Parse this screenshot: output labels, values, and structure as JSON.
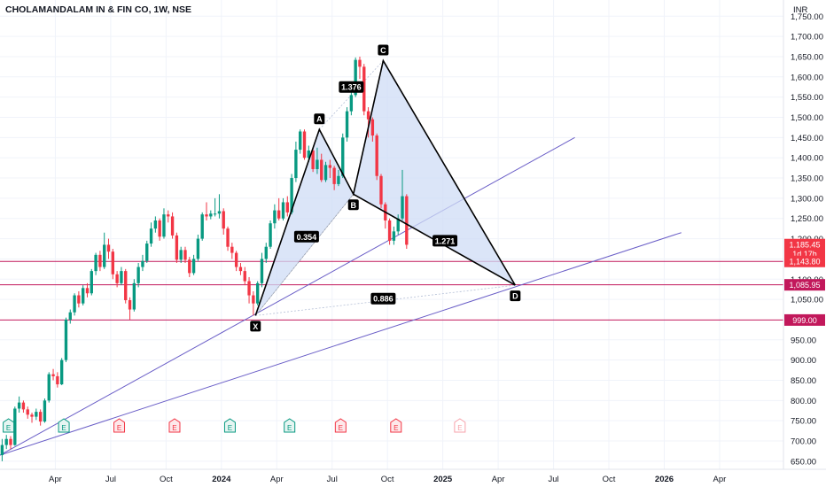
{
  "header": {
    "title": "CHOLAMANDALAM IN & FIN CO, 1W, NSE",
    "currency": "INR"
  },
  "chart_data": {
    "type": "candlestick",
    "price_axis": {
      "ticks": [
        650,
        700,
        750,
        800,
        850,
        900,
        950,
        1050,
        1100,
        1150,
        1200,
        1250,
        1300,
        1350,
        1400,
        1450,
        1500,
        1550,
        1600,
        1650,
        1700,
        1750
      ],
      "range": [
        630,
        1790
      ]
    },
    "time_axis": {
      "labels": [
        {
          "label": "Apr",
          "t": 13
        },
        {
          "label": "Jul",
          "t": 26
        },
        {
          "label": "Oct",
          "t": 39
        },
        {
          "label": "2024",
          "t": 52
        },
        {
          "label": "Apr",
          "t": 65
        },
        {
          "label": "Jul",
          "t": 78
        },
        {
          "label": "Oct",
          "t": 91
        },
        {
          "label": "2025",
          "t": 104
        },
        {
          "label": "Apr",
          "t": 117
        },
        {
          "label": "Jul",
          "t": 130
        },
        {
          "label": "Oct",
          "t": 143
        },
        {
          "label": "2026",
          "t": 156
        },
        {
          "label": "Apr",
          "t": 169
        }
      ],
      "range": [
        0,
        184
      ]
    },
    "price_tags": [
      {
        "value": "1,185.45",
        "price": 1185.45,
        "color": "#f23645"
      },
      {
        "value": "1d 17h",
        "price": 1163,
        "color": "#f23645"
      },
      {
        "value": "1,143.80",
        "price": 1143.8,
        "color": "#f23645"
      },
      {
        "value": "1,085.95",
        "price": 1085.95,
        "color": "#c2185b"
      },
      {
        "value": "999.00",
        "price": 999,
        "color": "#c2185b"
      }
    ],
    "horizontal_lines": [
      1143.8,
      1085.95,
      999
    ],
    "harmonic_pattern": {
      "points": [
        {
          "label": "X",
          "t": 60,
          "price": 1010
        },
        {
          "label": "A",
          "t": 75,
          "price": 1470
        },
        {
          "label": "B",
          "t": 83,
          "price": 1310
        },
        {
          "label": "C",
          "t": 90,
          "price": 1640
        },
        {
          "label": "D",
          "t": 121,
          "price": 1085
        }
      ],
      "ratios": [
        {
          "value": "1.376",
          "t": 82.5,
          "price": 1575
        },
        {
          "value": "0.354",
          "t": 72,
          "price": 1205
        },
        {
          "value": "1.271",
          "t": 104.5,
          "price": 1195
        },
        {
          "value": "0.886",
          "t": 90,
          "price": 1052
        }
      ]
    },
    "trendlines": [
      {
        "t1": 0,
        "p1": 665,
        "t2": 135,
        "p2": 1450
      },
      {
        "t1": 0,
        "p1": 665,
        "t2": 160,
        "p2": 1215
      }
    ],
    "earnings_markers": [
      {
        "label": "E",
        "t": 2,
        "type": "released-good"
      },
      {
        "label": "E",
        "t": 15,
        "type": "released-good"
      },
      {
        "label": "E",
        "t": 28,
        "type": "released-bad"
      },
      {
        "label": "E",
        "t": 41,
        "type": "released-bad"
      },
      {
        "label": "E",
        "t": 54,
        "type": "released-good"
      },
      {
        "label": "E",
        "t": 68,
        "type": "released-good"
      },
      {
        "label": "E",
        "t": 80,
        "type": "released-bad"
      },
      {
        "label": "E",
        "t": 93,
        "type": "released-bad"
      },
      {
        "label": "E",
        "t": 108,
        "type": "upcoming"
      }
    ],
    "candles": [
      [
        665,
        690,
        650,
        705
      ],
      [
        690,
        705,
        680,
        715
      ],
      [
        705,
        690,
        680,
        712
      ],
      [
        690,
        780,
        688,
        785
      ],
      [
        780,
        795,
        770,
        810
      ],
      [
        795,
        778,
        770,
        800
      ],
      [
        778,
        765,
        755,
        785
      ],
      [
        765,
        760,
        745,
        770
      ],
      [
        760,
        772,
        752,
        780
      ],
      [
        772,
        748,
        738,
        778
      ],
      [
        748,
        800,
        745,
        805
      ],
      [
        800,
        865,
        795,
        870
      ],
      [
        865,
        860,
        850,
        878
      ],
      [
        860,
        840,
        832,
        870
      ],
      [
        840,
        900,
        838,
        905
      ],
      [
        900,
        1000,
        895,
        1005
      ],
      [
        1000,
        1018,
        990,
        1025
      ],
      [
        1018,
        1060,
        1010,
        1065
      ],
      [
        1060,
        1040,
        1030,
        1070
      ],
      [
        1040,
        1078,
        1035,
        1085
      ],
      [
        1078,
        1065,
        1055,
        1090
      ],
      [
        1065,
        1120,
        1060,
        1125
      ],
      [
        1120,
        1160,
        1110,
        1165
      ],
      [
        1160,
        1130,
        1120,
        1170
      ],
      [
        1130,
        1185,
        1125,
        1215
      ],
      [
        1185,
        1168,
        1150,
        1200
      ],
      [
        1168,
        1112,
        1100,
        1175
      ],
      [
        1112,
        1090,
        1080,
        1120
      ],
      [
        1090,
        1120,
        1085,
        1130
      ],
      [
        1120,
        1048,
        1040,
        1125
      ],
      [
        1048,
        1025,
        1000,
        1055
      ],
      [
        1025,
        1090,
        1020,
        1100
      ],
      [
        1090,
        1130,
        1080,
        1140
      ],
      [
        1130,
        1145,
        1120,
        1160
      ],
      [
        1145,
        1188,
        1140,
        1195
      ],
      [
        1188,
        1225,
        1180,
        1240
      ],
      [
        1225,
        1245,
        1215,
        1255
      ],
      [
        1245,
        1205,
        1195,
        1250
      ],
      [
        1205,
        1260,
        1200,
        1275
      ],
      [
        1260,
        1255,
        1240,
        1270
      ],
      [
        1255,
        1208,
        1200,
        1265
      ],
      [
        1208,
        1148,
        1140,
        1215
      ],
      [
        1148,
        1172,
        1140,
        1180
      ],
      [
        1172,
        1148,
        1140,
        1180
      ],
      [
        1148,
        1115,
        1105,
        1155
      ],
      [
        1115,
        1150,
        1110,
        1160
      ],
      [
        1150,
        1200,
        1145,
        1210
      ],
      [
        1200,
        1260,
        1195,
        1265
      ],
      [
        1260,
        1255,
        1245,
        1290
      ],
      [
        1255,
        1262,
        1248,
        1270
      ],
      [
        1262,
        1262,
        1255,
        1300
      ],
      [
        1262,
        1268,
        1250,
        1310
      ],
      [
        1268,
        1225,
        1210,
        1275
      ],
      [
        1225,
        1180,
        1170,
        1230
      ],
      [
        1180,
        1165,
        1150,
        1190
      ],
      [
        1165,
        1130,
        1120,
        1170
      ],
      [
        1130,
        1120,
        1110,
        1140
      ],
      [
        1120,
        1095,
        1085,
        1130
      ],
      [
        1095,
        1060,
        1040,
        1105
      ],
      [
        1060,
        1040,
        1010,
        1070
      ],
      [
        1040,
        1090,
        1035,
        1095
      ],
      [
        1090,
        1150,
        1080,
        1165
      ],
      [
        1150,
        1180,
        1140,
        1190
      ],
      [
        1180,
        1238,
        1175,
        1245
      ],
      [
        1238,
        1270,
        1225,
        1285
      ],
      [
        1270,
        1250,
        1245,
        1300
      ],
      [
        1250,
        1290,
        1245,
        1300
      ],
      [
        1290,
        1265,
        1255,
        1305
      ],
      [
        1265,
        1350,
        1260,
        1360
      ],
      [
        1350,
        1420,
        1340,
        1440
      ],
      [
        1420,
        1465,
        1410,
        1470
      ],
      [
        1465,
        1400,
        1395,
        1470
      ],
      [
        1400,
        1418,
        1390,
        1430
      ],
      [
        1418,
        1372,
        1365,
        1425
      ],
      [
        1372,
        1395,
        1360,
        1425
      ],
      [
        1395,
        1345,
        1340,
        1410
      ],
      [
        1345,
        1382,
        1340,
        1390
      ],
      [
        1382,
        1375,
        1350,
        1395
      ],
      [
        1375,
        1335,
        1320,
        1380
      ],
      [
        1335,
        1355,
        1330,
        1370
      ],
      [
        1355,
        1450,
        1350,
        1460
      ],
      [
        1450,
        1515,
        1440,
        1525
      ],
      [
        1515,
        1555,
        1505,
        1575
      ],
      [
        1555,
        1642,
        1550,
        1648
      ],
      [
        1642,
        1625,
        1595,
        1650
      ],
      [
        1625,
        1515,
        1505,
        1632
      ],
      [
        1515,
        1495,
        1450,
        1525
      ],
      [
        1495,
        1455,
        1440,
        1500
      ],
      [
        1455,
        1355,
        1345,
        1460
      ],
      [
        1355,
        1285,
        1275,
        1360
      ],
      [
        1285,
        1245,
        1225,
        1290
      ],
      [
        1245,
        1195,
        1185,
        1250
      ],
      [
        1195,
        1218,
        1185,
        1230
      ],
      [
        1218,
        1250,
        1210,
        1260
      ],
      [
        1250,
        1305,
        1245,
        1370
      ],
      [
        1305,
        1185,
        1175,
        1310
      ]
    ],
    "colors": {
      "up": "#089981",
      "down": "#f23645",
      "pattern_fill": "#cfdcf6",
      "trendline": "#6a5ec7",
      "hline": "#c2185b",
      "pattern_line": "#000000"
    }
  }
}
